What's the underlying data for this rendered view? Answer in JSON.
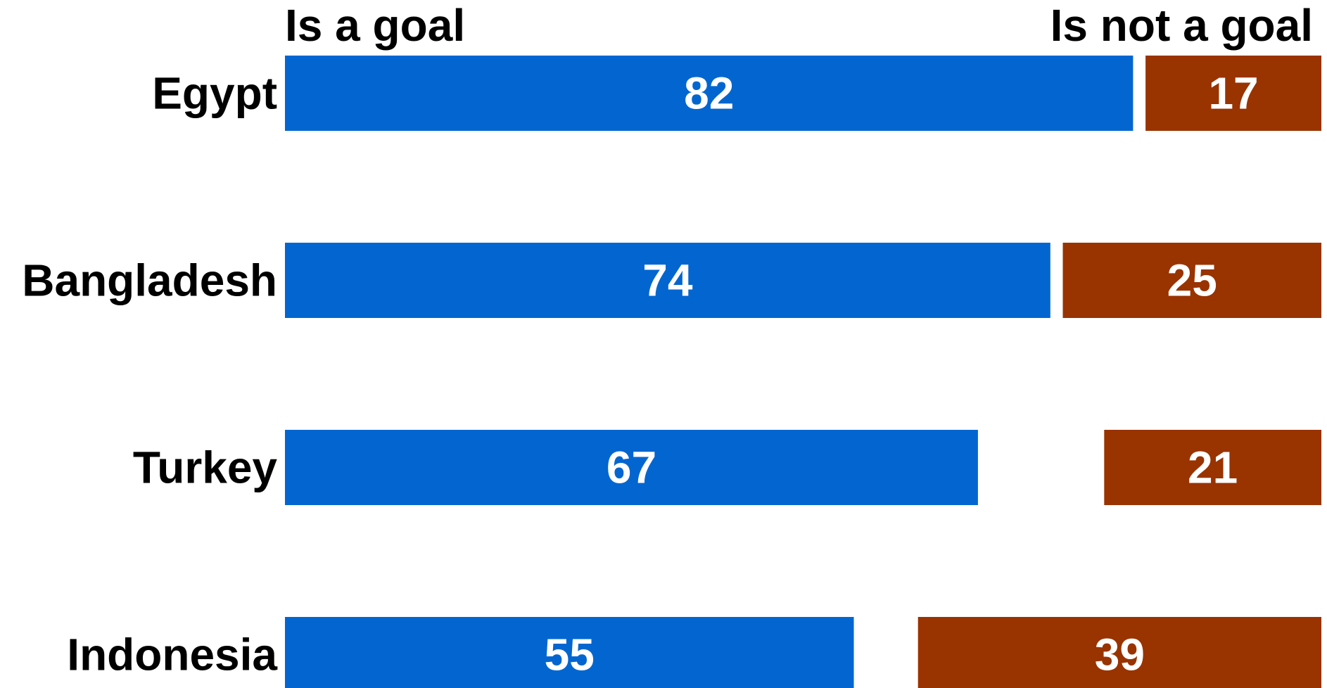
{
  "chart_data": {
    "type": "bar",
    "orientation": "horizontal",
    "stacked": "diverging",
    "categories": [
      "Egypt",
      "Bangladesh",
      "Turkey",
      "Indonesia"
    ],
    "series": [
      {
        "name": "Is a goal",
        "values": [
          82,
          74,
          67,
          55
        ],
        "color": "#0366D0"
      },
      {
        "name": "Is not a goal",
        "values": [
          17,
          25,
          21,
          39
        ],
        "color": "#993300"
      }
    ],
    "value_labels": true,
    "legend": "top",
    "grid": false,
    "xlim": [
      0,
      100
    ]
  }
}
